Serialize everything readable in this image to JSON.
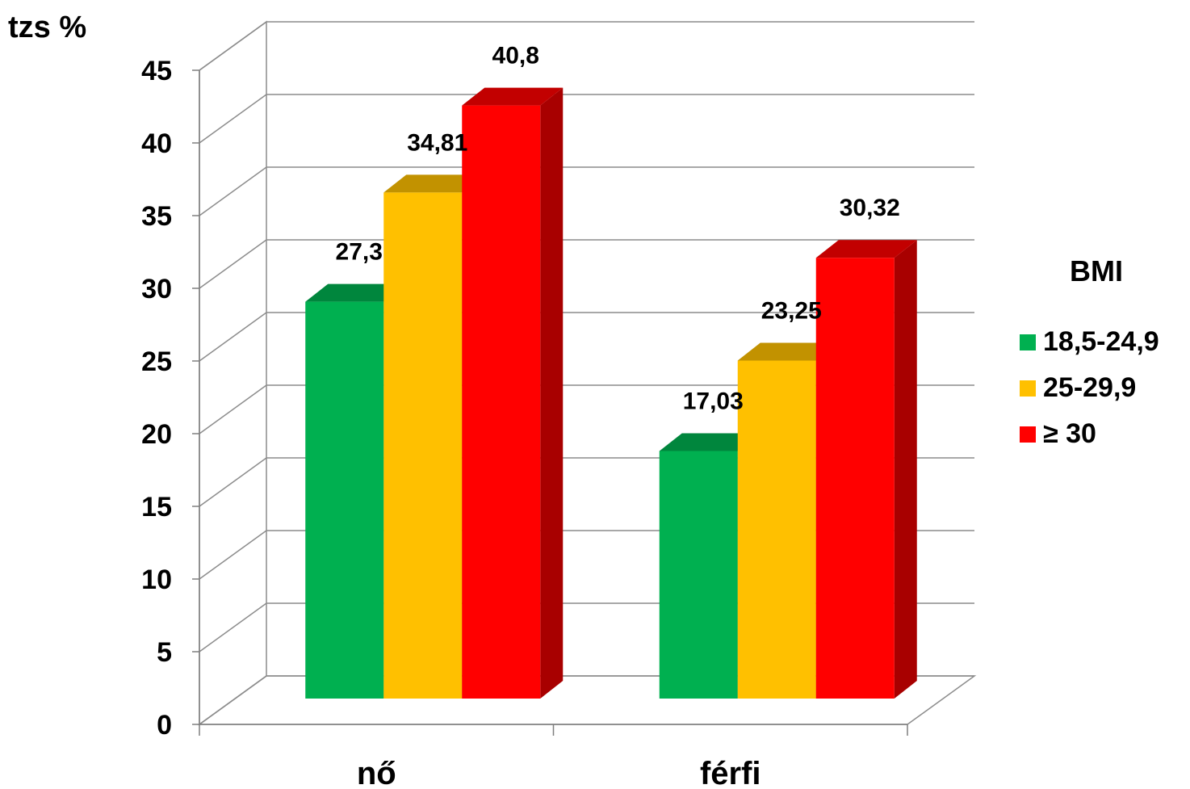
{
  "chart_data": {
    "type": "bar",
    "ylabel": "tzs %",
    "ylim": [
      0,
      45
    ],
    "yticks": [
      0,
      5,
      10,
      15,
      20,
      25,
      30,
      35,
      40,
      45
    ],
    "categories": [
      "nő",
      "férfi"
    ],
    "legend_title": "BMI",
    "legend_position": "right",
    "grid": true,
    "three_d": true,
    "series": [
      {
        "name": "18,5-24,9",
        "color": "#00b050",
        "values": [
          27.3,
          17.03
        ],
        "labels": [
          "27,3",
          "17,03"
        ]
      },
      {
        "name": "25-29,9",
        "color": "#ffc000",
        "values": [
          34.81,
          23.25
        ],
        "labels": [
          "34,81",
          "23,25"
        ]
      },
      {
        "name": "≥ 30",
        "color": "#ff0000",
        "values": [
          40.8,
          30.32
        ],
        "labels": [
          "40,8",
          "30,32"
        ]
      }
    ]
  }
}
